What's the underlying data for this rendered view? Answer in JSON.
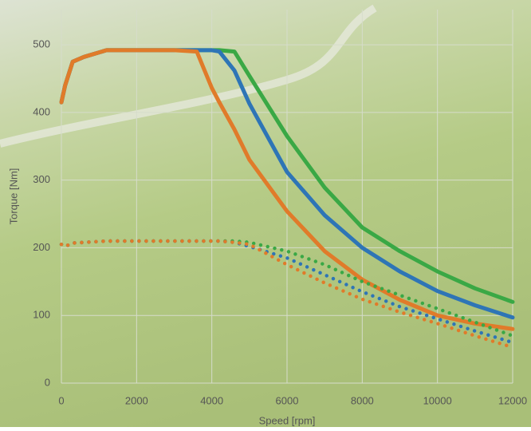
{
  "chart_data": {
    "type": "line",
    "x_label": "Speed [rpm]",
    "y_label": "Torque [Nm]",
    "x": [
      0,
      100,
      300,
      600,
      1200,
      2000,
      3000,
      3600,
      4000,
      4200,
      4600,
      5000,
      6000,
      7000,
      8000,
      9000,
      10000,
      11000,
      12000
    ],
    "series": [
      {
        "color": "#3aa845",
        "style": "solid",
        "values": [
          415,
          440,
          475,
          482,
          492,
          492,
          492,
          492,
          492,
          492,
          490,
          454,
          365,
          289,
          230,
          195,
          165,
          140,
          120
        ]
      },
      {
        "color": "#2e75b6",
        "style": "solid",
        "values": [
          415,
          440,
          475,
          482,
          492,
          492,
          492,
          492,
          492,
          490,
          462,
          413,
          312,
          248,
          200,
          165,
          136,
          115,
          97
        ]
      },
      {
        "color": "#e07b2a",
        "style": "solid",
        "values": [
          415,
          440,
          475,
          482,
          492,
          492,
          492,
          490,
          436,
          415,
          375,
          330,
          254,
          195,
          153,
          123,
          100,
          88,
          80
        ]
      },
      {
        "color": "#3aa845",
        "style": "dotted",
        "values": [
          205,
          202,
          207,
          208,
          210,
          210,
          210,
          210,
          210,
          210,
          210,
          208,
          195,
          175,
          150,
          130,
          110,
          90,
          70
        ]
      },
      {
        "color": "#2e75b6",
        "style": "dotted",
        "values": [
          205,
          202,
          207,
          208,
          210,
          210,
          210,
          210,
          210,
          210,
          208,
          202,
          185,
          160,
          135,
          113,
          95,
          77,
          60
        ]
      },
      {
        "color": "#e07b2a",
        "style": "dotted",
        "values": [
          205,
          202,
          207,
          208,
          210,
          210,
          210,
          210,
          210,
          210,
          208,
          205,
          175,
          148,
          124,
          105,
          88,
          70,
          53
        ]
      }
    ],
    "xlim": [
      0,
      12000
    ],
    "xticks": [
      0,
      2000,
      4000,
      6000,
      8000,
      10000,
      12000
    ],
    "ylim": [
      0,
      552
    ],
    "yticks": [
      0,
      100,
      200,
      300,
      400,
      500
    ],
    "grid": true
  }
}
